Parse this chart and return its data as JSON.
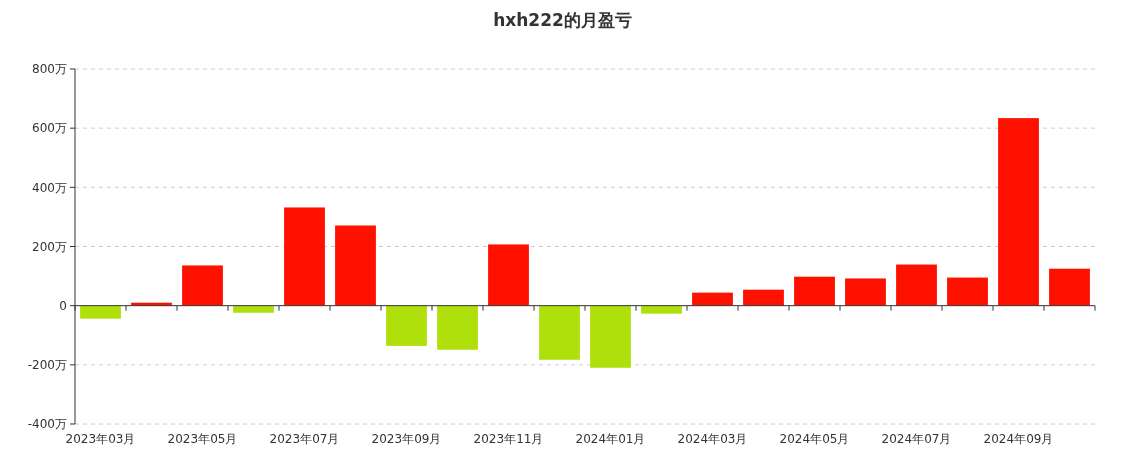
{
  "chart_data": {
    "type": "bar",
    "title": "hxh222的月盈亏",
    "categories": [
      "2023年03月",
      null,
      "2023年05月",
      null,
      "2023年07月",
      null,
      "2023年09月",
      null,
      "2023年11月",
      null,
      "2024年01月",
      null,
      "2024年03月",
      null,
      "2024年05月",
      null,
      "2024年07月",
      null,
      "2024年09月",
      null
    ],
    "values": [
      -44,
      10,
      136,
      -24,
      332,
      271,
      -136,
      -149,
      207,
      -183,
      -210,
      -27,
      44,
      54,
      98,
      92,
      139,
      95,
      634,
      125
    ],
    "colors": [
      "#b0e00c",
      "#ff1100",
      "#ff1100",
      "#b0e00c",
      "#ff1100",
      "#ff1100",
      "#b0e00c",
      "#b0e00c",
      "#ff1100",
      "#b0e00c",
      "#b0e00c",
      "#b0e00c",
      "#ff1100",
      "#ff1100",
      "#ff1100",
      "#ff1100",
      "#ff1100",
      "#ff1100",
      "#ff1100",
      "#ff1100"
    ],
    "ylim": [
      -400,
      800
    ],
    "yticks": [
      {
        "value": -400,
        "label": "-400万"
      },
      {
        "value": -200,
        "label": "-200万"
      },
      0,
      {
        "value": 200,
        "label": "200万"
      },
      {
        "value": 400,
        "label": "400万"
      },
      {
        "value": 600,
        "label": "600万"
      },
      {
        "value": 800,
        "label": "800万"
      }
    ],
    "grid": "y"
  }
}
